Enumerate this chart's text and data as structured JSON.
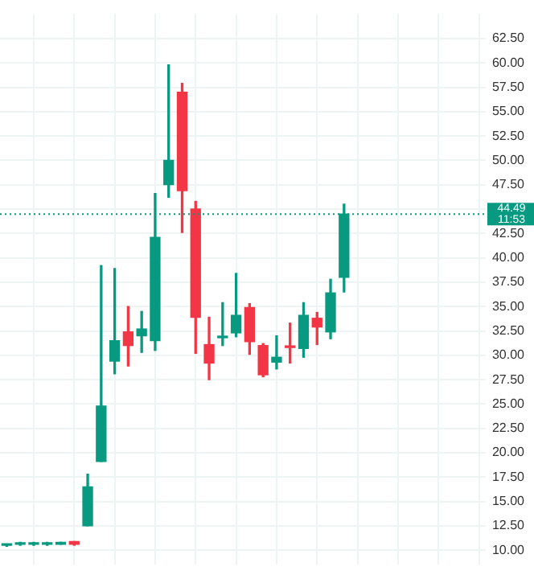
{
  "chart_data": {
    "type": "candlestick",
    "categories": [
      null,
      null,
      null,
      null,
      null,
      null,
      null,
      null,
      null,
      null,
      null,
      null,
      null,
      null,
      null,
      null,
      null,
      null,
      null,
      null,
      null,
      null,
      null,
      null,
      null,
      null,
      null,
      null,
      null,
      null,
      null,
      null,
      null,
      null,
      null,
      null
    ],
    "ohlc": [
      [
        10.5,
        10.6,
        10.4,
        10.6
      ],
      [
        10.6,
        10.8,
        10.5,
        10.7
      ],
      [
        10.6,
        10.8,
        10.5,
        10.7
      ],
      [
        10.6,
        10.8,
        10.5,
        10.7
      ],
      [
        10.6,
        10.8,
        10.6,
        10.8
      ],
      [
        10.9,
        10.9,
        10.5,
        10.6
      ],
      [
        12.5,
        17.8,
        12.5,
        16.5
      ],
      [
        19.1,
        39.2,
        19.1,
        24.8
      ],
      [
        29.4,
        38.9,
        28.1,
        31.5
      ],
      [
        32.4,
        35.0,
        28.9,
        31.0
      ],
      [
        32.0,
        34.5,
        30.3,
        32.7
      ],
      [
        31.5,
        46.6,
        30.5,
        42.1
      ],
      [
        47.5,
        59.8,
        46.2,
        50.0
      ],
      [
        57.0,
        57.9,
        42.6,
        46.9
      ],
      [
        45.0,
        45.8,
        30.2,
        33.9
      ],
      [
        31.1,
        33.9,
        27.5,
        29.2
      ],
      [
        31.8,
        35.4,
        31.0,
        31.9
      ],
      [
        32.3,
        38.4,
        31.9,
        34.1
      ],
      [
        34.9,
        35.3,
        30.1,
        31.4
      ],
      [
        31.0,
        31.2,
        27.8,
        28.0
      ],
      [
        29.3,
        32.0,
        28.6,
        29.8
      ],
      [
        30.9,
        33.3,
        29.2,
        30.8
      ],
      [
        30.7,
        35.4,
        29.8,
        34.1
      ],
      [
        33.8,
        34.4,
        31.1,
        32.9
      ],
      [
        32.4,
        37.8,
        31.7,
        36.4
      ],
      [
        38.0,
        45.5,
        36.5,
        44.49
      ],
      null,
      null,
      null,
      null,
      null,
      null,
      null,
      null,
      null,
      null
    ],
    "colors": [
      "#089981",
      "#089981",
      "#089981",
      "#089981",
      "#089981",
      "#f23645",
      "#089981",
      "#089981",
      "#089981",
      "#f23645",
      "#089981",
      "#089981",
      "#089981",
      "#f23645",
      "#f23645",
      "#f23645",
      "#089981",
      "#089981",
      "#f23645",
      "#f23645",
      "#089981",
      "#f23645",
      "#089981",
      "#f23645",
      "#089981",
      "#089981",
      null,
      null,
      null,
      null,
      null,
      null,
      null,
      null,
      null,
      null
    ],
    "ylim": [
      8.5,
      65
    ],
    "yticks": [
      {
        "value": 10,
        "label": "10.00"
      },
      {
        "value": 12.5,
        "label": "12.50"
      },
      {
        "value": 15,
        "label": "15.00"
      },
      {
        "value": 17.5,
        "label": "17.50"
      },
      {
        "value": 20,
        "label": "20.00"
      },
      {
        "value": 22.5,
        "label": "22.50"
      },
      {
        "value": 25,
        "label": "25.00"
      },
      {
        "value": 27.5,
        "label": "27.50"
      },
      {
        "value": 30,
        "label": "30.00"
      },
      {
        "value": 32.5,
        "label": "32.50"
      },
      {
        "value": 35,
        "label": "35.00"
      },
      {
        "value": 37.5,
        "label": "37.50"
      },
      {
        "value": 40,
        "label": "40.00"
      },
      {
        "value": 42.5,
        "label": "42.50"
      },
      {
        "value": 45,
        "label": null
      },
      {
        "value": 47.5,
        "label": "47.50"
      },
      {
        "value": 50,
        "label": "50.00"
      },
      {
        "value": 52.5,
        "label": "52.50"
      },
      {
        "value": 55,
        "label": "55.00"
      },
      {
        "value": 57.5,
        "label": "57.50"
      },
      {
        "value": 60,
        "label": "60.00"
      },
      {
        "value": 62.5,
        "label": "62.50"
      }
    ],
    "tick_labels": "y",
    "grid": true,
    "ref_lines": [
      {
        "axis": "y",
        "value": 44.49,
        "label": "44.49",
        "color": "#089981",
        "line_style": "dotted"
      }
    ],
    "annotations": [
      "11:53"
    ]
  }
}
